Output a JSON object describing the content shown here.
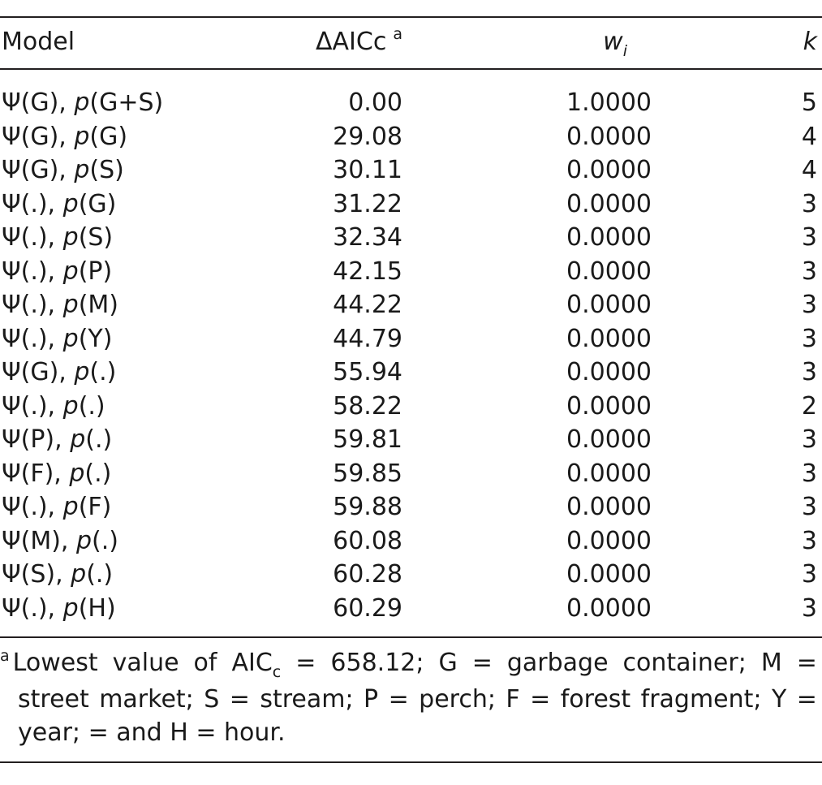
{
  "table": {
    "headers": {
      "model": "Model",
      "delta_aicc": "ΔAICc",
      "delta_aicc_note": "a",
      "weight_base": "w",
      "weight_sub": "i",
      "k": "k"
    },
    "rows": [
      {
        "psi": "Ψ(G), ",
        "p": "p",
        "p_args": "(G+S)",
        "delta": "0.00",
        "w": "1.0000",
        "k": "5"
      },
      {
        "psi": "Ψ(G), ",
        "p": "p",
        "p_args": "(G)",
        "delta": "29.08",
        "w": "0.0000",
        "k": "4"
      },
      {
        "psi": "Ψ(G), ",
        "p": "p",
        "p_args": "(S)",
        "delta": "30.11",
        "w": "0.0000",
        "k": "4"
      },
      {
        "psi": "Ψ(.), ",
        "p": "p",
        "p_args": "(G)",
        "delta": "31.22",
        "w": "0.0000",
        "k": "3"
      },
      {
        "psi": "Ψ(.), ",
        "p": "p",
        "p_args": "(S)",
        "delta": "32.34",
        "w": "0.0000",
        "k": "3"
      },
      {
        "psi": "Ψ(.), ",
        "p": "p",
        "p_args": "(P)",
        "delta": "42.15",
        "w": "0.0000",
        "k": "3"
      },
      {
        "psi": "Ψ(.), ",
        "p": "p",
        "p_args": "(M)",
        "delta": "44.22",
        "w": "0.0000",
        "k": "3"
      },
      {
        "psi": "Ψ(.), ",
        "p": "p",
        "p_args": "(Y)",
        "delta": "44.79",
        "w": "0.0000",
        "k": "3"
      },
      {
        "psi": "Ψ(G), ",
        "p": "p",
        "p_args": "(.)",
        "delta": "55.94",
        "w": "0.0000",
        "k": "3"
      },
      {
        "psi": "Ψ(.), ",
        "p": "p",
        "p_args": "(.)",
        "delta": "58.22",
        "w": "0.0000",
        "k": "2"
      },
      {
        "psi": "Ψ(P), ",
        "p": "p",
        "p_args": "(.)",
        "delta": "59.81",
        "w": "0.0000",
        "k": "3"
      },
      {
        "psi": "Ψ(F), ",
        "p": "p",
        "p_args": "(.)",
        "delta": "59.85",
        "w": "0.0000",
        "k": "3"
      },
      {
        "psi": "Ψ(.), ",
        "p": "p",
        "p_args": "(F)",
        "delta": "59.88",
        "w": "0.0000",
        "k": "3"
      },
      {
        "psi": "Ψ(M), ",
        "p": "p",
        "p_args": "(.)",
        "delta": "60.08",
        "w": "0.0000",
        "k": "3"
      },
      {
        "psi": "Ψ(S), ",
        "p": "p",
        "p_args": "(.)",
        "delta": "60.28",
        "w": "0.0000",
        "k": "3"
      },
      {
        "psi": "Ψ(.), ",
        "p": "p",
        "p_args": "(H)",
        "delta": "60.29",
        "w": "0.0000",
        "k": "3"
      }
    ]
  },
  "footnote": {
    "mark": "a",
    "line1_words": [
      "Lowest",
      "value",
      "of",
      "AIC",
      "=",
      "658.12;",
      "G",
      "=",
      "garbage",
      "container;",
      "M",
      "="
    ],
    "aic_sub": "c",
    "line2_words": [
      "street",
      "market;",
      "S",
      "=",
      "stream;",
      "P",
      "=",
      "perch;",
      "F",
      "=",
      "forest",
      "fragment;",
      "Y",
      "="
    ],
    "line3": "year; = and H = hour."
  }
}
